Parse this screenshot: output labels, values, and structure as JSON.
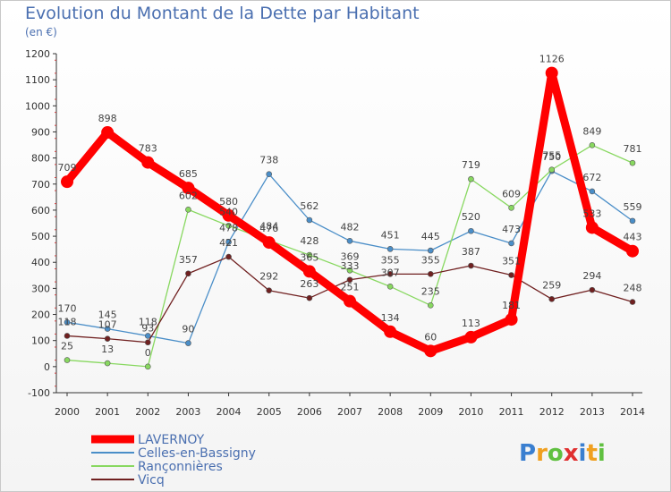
{
  "chart_data": {
    "type": "line",
    "title": "Evolution du Montant de la Dette par Habitant",
    "subtitle": "(en €)",
    "x": [
      "2000",
      "2001",
      "2002",
      "2003",
      "2004",
      "2005",
      "2006",
      "2007",
      "2008",
      "2009",
      "2010",
      "2011",
      "2012",
      "2013",
      "2014"
    ],
    "ylim": [
      -100,
      1200
    ],
    "yticks": [
      -100,
      0,
      100,
      200,
      300,
      400,
      500,
      600,
      700,
      800,
      900,
      1000,
      1100,
      1200
    ],
    "grid": false,
    "legend_position": "bottom-left",
    "series": [
      {
        "name": "LAVERNOY",
        "color": "#ff0000",
        "values": [
          709,
          898,
          783,
          685,
          580,
          476,
          365,
          251,
          134,
          60,
          113,
          181,
          1126,
          533,
          443
        ]
      },
      {
        "name": "Celles-en-Bassigny",
        "color": "#4a8ec8",
        "values": [
          170,
          145,
          118,
          90,
          478,
          738,
          562,
          482,
          451,
          445,
          520,
          473,
          750,
          672,
          559
        ]
      },
      {
        "name": "Rançonnières",
        "color": "#88d860",
        "values": [
          25,
          13,
          0,
          602,
          540,
          484,
          428,
          369,
          307,
          235,
          719,
          609,
          755,
          849,
          781
        ]
      },
      {
        "name": "Vicq",
        "color": "#702020",
        "values": [
          118,
          107,
          93,
          357,
          421,
          292,
          263,
          333,
          355,
          355,
          387,
          351,
          259,
          294,
          248
        ]
      }
    ]
  },
  "logo": {
    "text": "Proxiti",
    "colors": [
      "#3a7fd0",
      "#f0a020",
      "#60c040",
      "#e03030"
    ]
  }
}
